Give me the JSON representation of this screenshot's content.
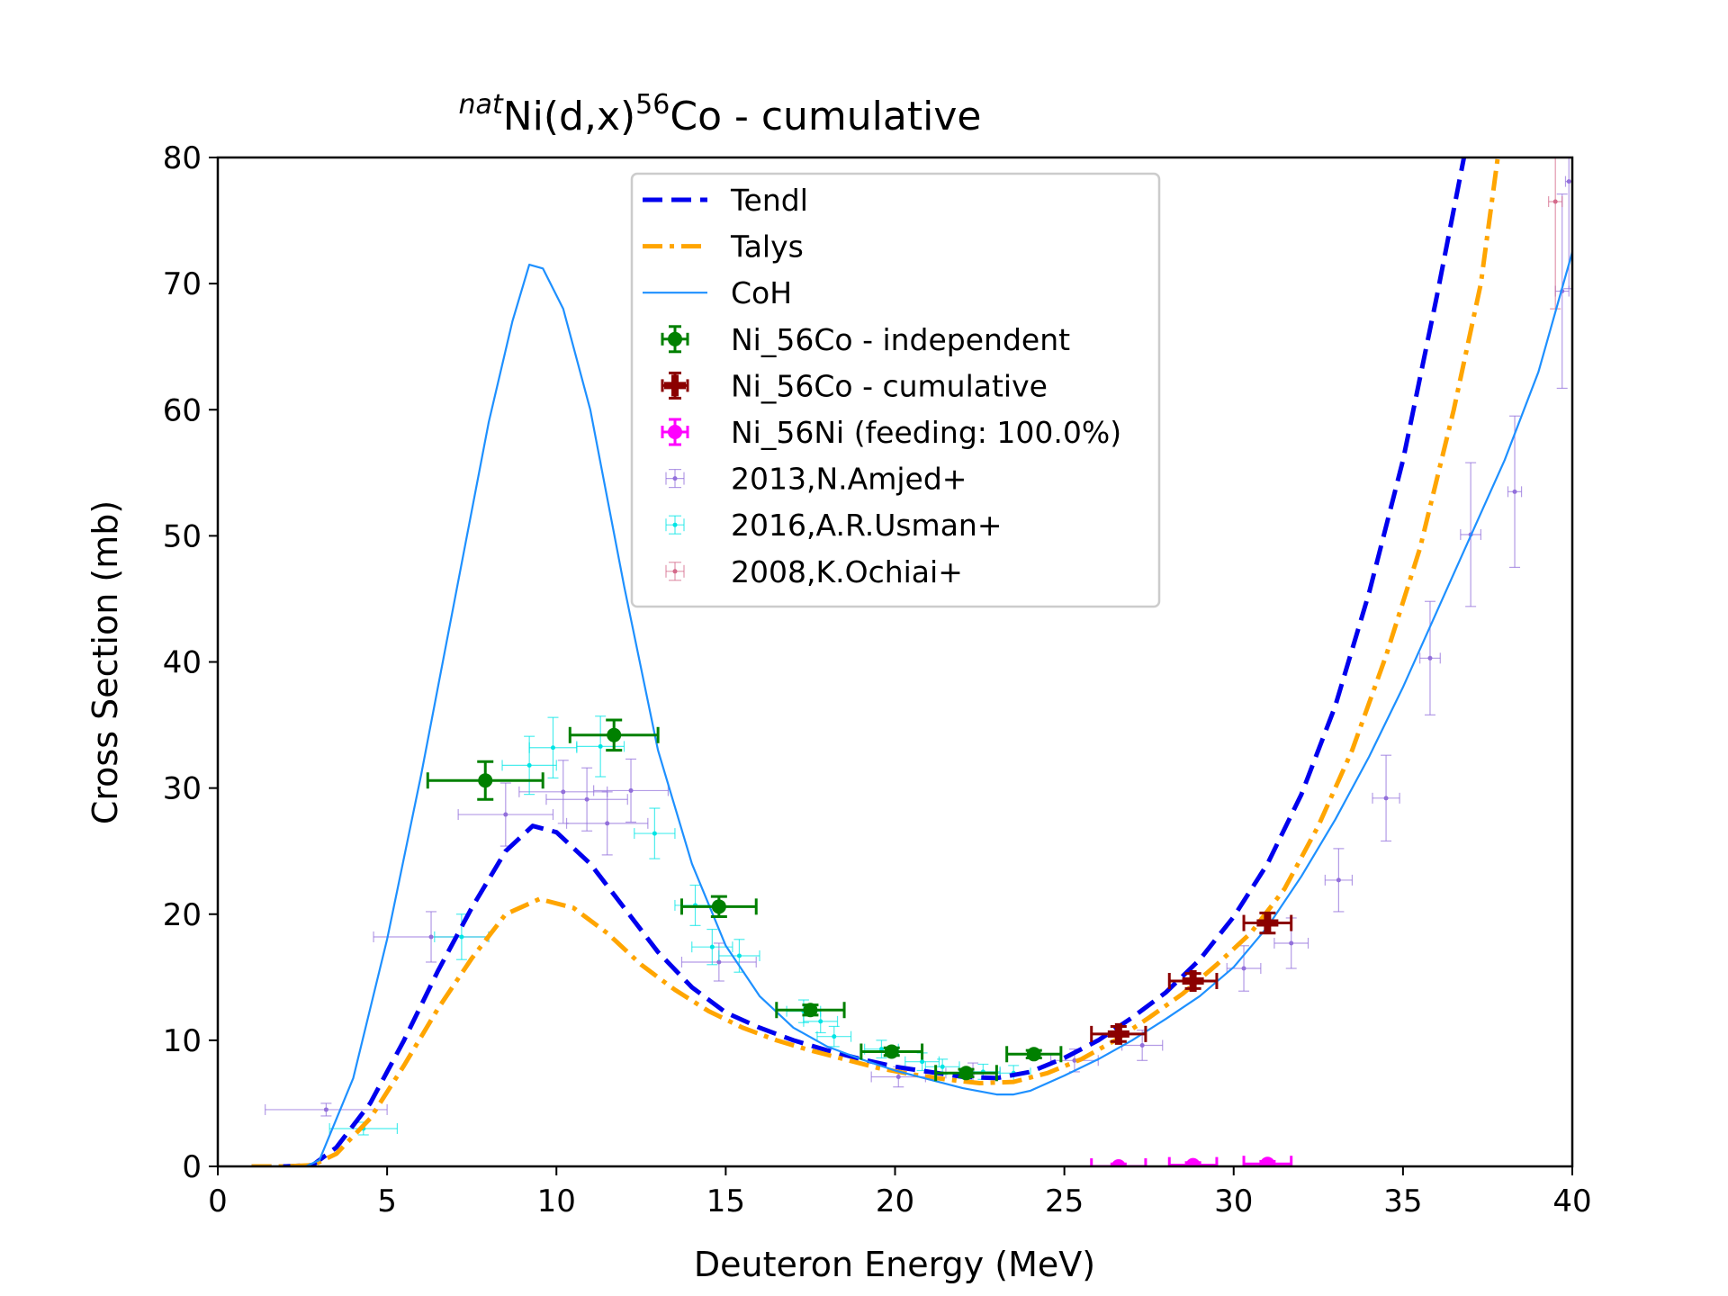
{
  "chart_data": {
    "type": "scatter",
    "title": {
      "sup_left": "nat",
      "mid": "Ni(d,x)",
      "sup_right": "56",
      "tail": "Co - cumulative"
    },
    "xlabel": "Deuteron Energy (MeV)",
    "ylabel": "Cross Section (mb)",
    "xlim": [
      0,
      40
    ],
    "ylim": [
      0,
      80
    ],
    "xticks": [
      0,
      5,
      10,
      15,
      20,
      25,
      30,
      35,
      40
    ],
    "yticks": [
      0,
      10,
      20,
      30,
      40,
      50,
      60,
      70,
      80
    ],
    "grid": false,
    "legend_position": "upper-center",
    "curves": [
      {
        "name": "Tendl",
        "color": "#0000ee",
        "style": "dashed",
        "points": [
          [
            1,
            0
          ],
          [
            2,
            0
          ],
          [
            2.8,
            0.1
          ],
          [
            3.5,
            1.5
          ],
          [
            4.5,
            5
          ],
          [
            5.5,
            10
          ],
          [
            6.5,
            15.5
          ],
          [
            7.5,
            20.5
          ],
          [
            8.5,
            25
          ],
          [
            9.3,
            27
          ],
          [
            10,
            26.5
          ],
          [
            11,
            24
          ],
          [
            12,
            20.5
          ],
          [
            13,
            17
          ],
          [
            14,
            14.2
          ],
          [
            15,
            12.2
          ],
          [
            16,
            11
          ],
          [
            17,
            10
          ],
          [
            18,
            9.2
          ],
          [
            19,
            8.5
          ],
          [
            20,
            7.9
          ],
          [
            21,
            7.5
          ],
          [
            22,
            7.1
          ],
          [
            23,
            7
          ],
          [
            24,
            7.5
          ],
          [
            25,
            8.6
          ],
          [
            26,
            10
          ],
          [
            27,
            11.8
          ],
          [
            28,
            13.8
          ],
          [
            29,
            16.4
          ],
          [
            30,
            19.8
          ],
          [
            31,
            24
          ],
          [
            32,
            29.5
          ],
          [
            33,
            36.5
          ],
          [
            34,
            45.5
          ],
          [
            35,
            56
          ],
          [
            36,
            69
          ],
          [
            36.8,
            80
          ]
        ]
      },
      {
        "name": "Talys",
        "color": "#ffa500",
        "style": "dashdot",
        "points": [
          [
            1,
            0
          ],
          [
            2,
            0
          ],
          [
            2.8,
            0.1
          ],
          [
            3.5,
            1
          ],
          [
            4.5,
            3.8
          ],
          [
            5.5,
            8
          ],
          [
            6.5,
            12.5
          ],
          [
            7.5,
            16.5
          ],
          [
            8.5,
            20
          ],
          [
            9.5,
            21.2
          ],
          [
            10.5,
            20.5
          ],
          [
            11.5,
            18.5
          ],
          [
            12.5,
            16
          ],
          [
            13.5,
            14
          ],
          [
            14.5,
            12.3
          ],
          [
            15.5,
            11
          ],
          [
            16.5,
            10
          ],
          [
            17.5,
            9.2
          ],
          [
            18.5,
            8.5
          ],
          [
            19.5,
            7.8
          ],
          [
            20.5,
            7.3
          ],
          [
            21.5,
            6.9
          ],
          [
            22.5,
            6.6
          ],
          [
            23.5,
            6.7
          ],
          [
            24.5,
            7.4
          ],
          [
            25.5,
            8.5
          ],
          [
            26.5,
            10
          ],
          [
            27.5,
            11.8
          ],
          [
            28.5,
            13.7
          ],
          [
            29.5,
            16
          ],
          [
            30.5,
            18.5
          ],
          [
            31.5,
            22
          ],
          [
            32.5,
            27
          ],
          [
            33.5,
            33
          ],
          [
            34.5,
            40.5
          ],
          [
            35.5,
            49
          ],
          [
            36.5,
            60
          ],
          [
            37.3,
            70
          ],
          [
            37.8,
            80
          ]
        ]
      },
      {
        "name": "CoH",
        "color": "#1e90ff",
        "style": "solid",
        "points": [
          [
            1,
            0
          ],
          [
            2.6,
            0
          ],
          [
            3,
            0.5
          ],
          [
            4,
            7
          ],
          [
            5,
            18
          ],
          [
            6,
            31
          ],
          [
            7,
            45
          ],
          [
            8,
            59
          ],
          [
            8.7,
            67
          ],
          [
            9.2,
            71.5
          ],
          [
            9.6,
            71.2
          ],
          [
            10.2,
            68
          ],
          [
            11,
            60
          ],
          [
            12,
            46
          ],
          [
            13,
            33
          ],
          [
            14,
            24
          ],
          [
            15,
            17.5
          ],
          [
            16,
            13.5
          ],
          [
            17,
            11
          ],
          [
            18,
            9.5
          ],
          [
            19,
            8.5
          ],
          [
            20,
            7.6
          ],
          [
            21,
            6.9
          ],
          [
            22,
            6.2
          ],
          [
            23,
            5.7
          ],
          [
            23.5,
            5.7
          ],
          [
            24,
            6
          ],
          [
            25,
            7.2
          ],
          [
            26,
            8.5
          ],
          [
            27,
            10
          ],
          [
            28,
            11.7
          ],
          [
            29,
            13.5
          ],
          [
            30,
            15.8
          ],
          [
            31,
            19
          ],
          [
            32,
            23
          ],
          [
            33,
            27.5
          ],
          [
            34,
            32.5
          ],
          [
            35,
            38
          ],
          [
            36,
            44
          ],
          [
            37,
            50
          ],
          [
            38,
            56
          ],
          [
            39,
            63
          ],
          [
            40,
            72.5
          ]
        ]
      }
    ],
    "series": [
      {
        "name": "Ni_56Co - independent",
        "color": "#008000",
        "marker": "circle",
        "points": [
          [
            7.9,
            30.6,
            1.7,
            1.5
          ],
          [
            11.7,
            34.2,
            1.3,
            1.2
          ],
          [
            14.8,
            20.6,
            1.1,
            0.8
          ],
          [
            17.5,
            12.4,
            1.0,
            0.4
          ],
          [
            19.9,
            9.1,
            0.9,
            0.3
          ],
          [
            22.1,
            7.4,
            0.9,
            0.3
          ],
          [
            24.1,
            8.9,
            0.8,
            0.3
          ]
        ]
      },
      {
        "name": "Ni_56Co - cumulative",
        "color": "#8b0000",
        "marker": "plus",
        "points": [
          [
            26.6,
            10.5,
            0.8,
            0.6
          ],
          [
            28.8,
            14.7,
            0.7,
            0.6
          ],
          [
            31.0,
            19.3,
            0.7,
            0.8
          ]
        ]
      },
      {
        "name": "Ni_56Ni (feeding: 100.0%)",
        "color": "#ff00ff",
        "marker": "circle",
        "points": [
          [
            26.6,
            0,
            0.8,
            0.2
          ],
          [
            28.8,
            0.1,
            0.7,
            0.2
          ],
          [
            31.0,
            0.2,
            0.7,
            0.2
          ]
        ]
      },
      {
        "name": "2013,N.Amjed+",
        "color": "#9370db",
        "marker": "small",
        "points": [
          [
            3.2,
            4.5,
            1.8,
            0.5
          ],
          [
            6.3,
            18.2,
            1.7,
            2
          ],
          [
            8.5,
            27.9,
            1.4,
            2.5
          ],
          [
            10.2,
            29.7,
            1.3,
            2.5
          ],
          [
            10.9,
            29.1,
            1.2,
            2.5
          ],
          [
            11.5,
            27.2,
            1.2,
            2.5
          ],
          [
            12.2,
            29.8,
            1.1,
            2.5
          ],
          [
            14.8,
            16.2,
            1.1,
            1.5
          ],
          [
            20.1,
            7.1,
            0.8,
            0.8
          ],
          [
            22.3,
            7.4,
            0.8,
            0.8
          ],
          [
            25.3,
            8.4,
            0.7,
            0.9
          ],
          [
            27.3,
            9.6,
            0.6,
            1.2
          ],
          [
            30.3,
            15.7,
            0.5,
            1.8
          ],
          [
            31.7,
            17.7,
            0.5,
            2.0
          ],
          [
            33.1,
            22.7,
            0.4,
            2.5
          ],
          [
            34.5,
            29.2,
            0.4,
            3.4
          ],
          [
            35.8,
            40.3,
            0.3,
            4.5
          ],
          [
            37.0,
            50.1,
            0.3,
            5.7
          ],
          [
            38.3,
            53.5,
            0.2,
            6.0
          ],
          [
            39.7,
            69.4,
            0.2,
            7.7
          ],
          [
            39.9,
            78.1,
            0.1,
            8.5
          ]
        ]
      },
      {
        "name": "2016,A.R.Usman+",
        "color": "#00e5e5",
        "marker": "small",
        "points": [
          [
            4.3,
            3.0,
            1.0,
            0.5
          ],
          [
            7.2,
            18.2,
            0.8,
            1.8
          ],
          [
            9.2,
            31.8,
            0.8,
            2.3
          ],
          [
            9.9,
            33.2,
            0.7,
            2.4
          ],
          [
            11.3,
            33.3,
            0.7,
            2.4
          ],
          [
            12.9,
            26.4,
            0.6,
            2
          ],
          [
            14.1,
            20.7,
            0.6,
            1.6
          ],
          [
            14.6,
            17.4,
            0.6,
            1.4
          ],
          [
            15.4,
            16.7,
            0.6,
            1.3
          ],
          [
            17.3,
            12.3,
            0.5,
            0.9
          ],
          [
            17.8,
            11.5,
            0.5,
            0.9
          ],
          [
            18.2,
            10.3,
            0.5,
            0.8
          ],
          [
            19.6,
            9.3,
            0.5,
            0.7
          ],
          [
            20.8,
            8.3,
            0.5,
            0.7
          ],
          [
            21.4,
            7.9,
            0.5,
            0.6
          ],
          [
            22.6,
            7.5,
            0.5,
            0.6
          ],
          [
            23.5,
            7.4,
            0.5,
            0.6
          ]
        ]
      },
      {
        "name": "2008,K.Ochiai+",
        "color": "#d46a8a",
        "marker": "small",
        "points": [
          [
            39.5,
            76.5,
            0.2,
            8.5
          ]
        ]
      }
    ]
  }
}
